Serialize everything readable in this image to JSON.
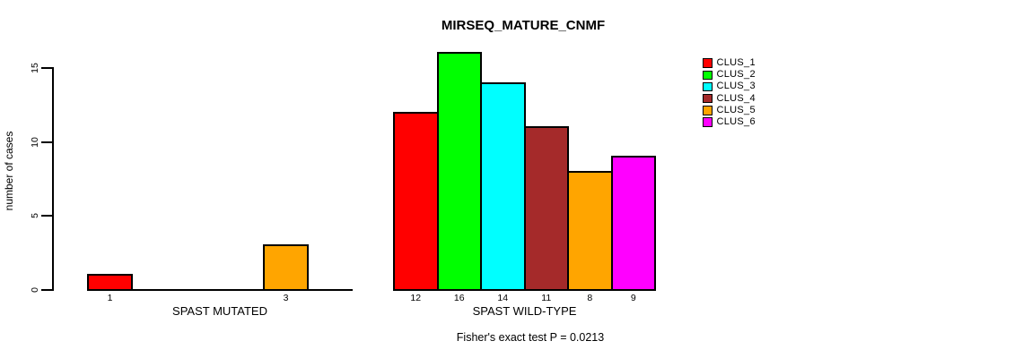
{
  "title": "MIRSEQ_MATURE_CNMF",
  "ylabel": "number of cases",
  "annotation": "Fisher's exact test P = 0.0213",
  "colors": {
    "background": "#FFFFFF",
    "axis": "#000000",
    "bar_border": "#000000"
  },
  "chart_data": {
    "type": "bar",
    "title": "MIRSEQ_MATURE_CNMF",
    "xlabel": "",
    "ylabel": "number of cases",
    "ylim": [
      0,
      15
    ],
    "yticks": [
      0,
      5,
      10,
      15
    ],
    "grid": false,
    "legend_position": "right",
    "annotation": "Fisher's exact test P = 0.0213",
    "legend": [
      {
        "label": "CLUS_1",
        "color": "#FF0000"
      },
      {
        "label": "CLUS_2",
        "color": "#00FF00"
      },
      {
        "label": "CLUS_3",
        "color": "#00FFFF"
      },
      {
        "label": "CLUS_4",
        "color": "#A52A2A"
      },
      {
        "label": "CLUS_5",
        "color": "#FFA500"
      },
      {
        "label": "CLUS_6",
        "color": "#FF00FF"
      }
    ],
    "groups": [
      {
        "label": "SPAST MUTATED",
        "slots": 6,
        "bars": [
          {
            "cluster": "CLUS_1",
            "slot": 0,
            "value": 1,
            "value_label": "1",
            "color": "#FF0000"
          },
          {
            "cluster": "CLUS_5",
            "slot": 4,
            "value": 3,
            "value_label": "3",
            "color": "#FFA500"
          }
        ]
      },
      {
        "label": "SPAST WILD-TYPE",
        "slots": 6,
        "bars": [
          {
            "cluster": "CLUS_1",
            "slot": 0,
            "value": 12,
            "value_label": "12",
            "color": "#FF0000"
          },
          {
            "cluster": "CLUS_2",
            "slot": 1,
            "value": 16,
            "value_label": "16",
            "color": "#00FF00"
          },
          {
            "cluster": "CLUS_3",
            "slot": 2,
            "value": 14,
            "value_label": "14",
            "color": "#00FFFF"
          },
          {
            "cluster": "CLUS_4",
            "slot": 3,
            "value": 11,
            "value_label": "11",
            "color": "#A52A2A"
          },
          {
            "cluster": "CLUS_5",
            "slot": 4,
            "value": 8,
            "value_label": "8",
            "color": "#FFA500"
          },
          {
            "cluster": "CLUS_6",
            "slot": 5,
            "value": 9,
            "value_label": "9",
            "color": "#FF00FF"
          }
        ]
      }
    ]
  }
}
